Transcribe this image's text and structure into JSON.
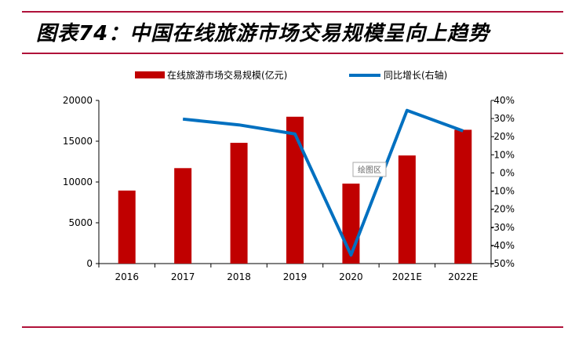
{
  "title": "图表74：中国在线旅游市场交易规模呈向上趋势",
  "tooltip": "绘图区",
  "colors": {
    "bar": "#c00000",
    "line": "#0070c0",
    "rule": "#b0123a"
  },
  "chart_data": {
    "type": "bar+line",
    "categories": [
      "2016",
      "2017",
      "2018",
      "2019",
      "2020",
      "2021E",
      "2022E"
    ],
    "series": [
      {
        "name": "在线旅游市场交易规模(亿元)",
        "type": "bar",
        "axis": "left",
        "values": [
          8950,
          11700,
          14800,
          18000,
          9800,
          13250,
          16400
        ]
      },
      {
        "name": "同比增长(右轴)",
        "type": "line",
        "axis": "right",
        "values": [
          null,
          29.7,
          26.5,
          21.5,
          -45.3,
          34.5,
          23.2
        ]
      }
    ],
    "left_axis": {
      "ylim": [
        0,
        20000
      ],
      "ticks": [
        "0",
        "5000",
        "10000",
        "15000",
        "20000"
      ]
    },
    "right_axis": {
      "ylim": [
        -50,
        40
      ],
      "ticks": [
        "-50%",
        "-40%",
        "-30%",
        "-20%",
        "-10%",
        "0%",
        "10%",
        "20%",
        "30%",
        "40%"
      ]
    },
    "legend_placement": "top",
    "grid": false
  }
}
